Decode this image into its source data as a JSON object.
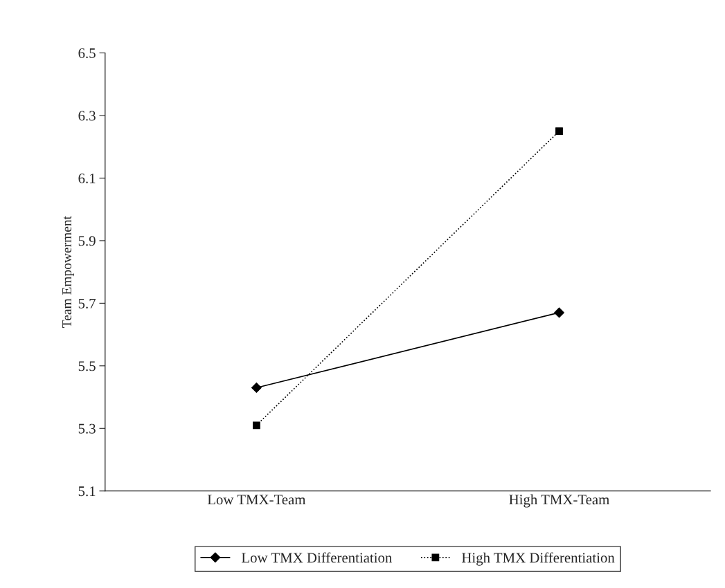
{
  "chart_data": {
    "type": "line",
    "ylabel": "Team Empowerment",
    "categories": [
      "Low TMX-Team",
      "High TMX-Team"
    ],
    "series": [
      {
        "name": "Low TMX Differentiation",
        "color": "#000000",
        "values": [
          5.43,
          5.67
        ],
        "marker": "diamond",
        "line_style": "solid"
      },
      {
        "name": "High TMX Differentiation",
        "color": "#000000",
        "values": [
          5.31,
          6.25
        ],
        "marker": "square",
        "line_style": "dotted"
      }
    ],
    "ylim": [
      5.1,
      6.5
    ],
    "yticks": [
      5.1,
      5.3,
      5.5,
      5.7,
      5.9,
      6.1,
      6.3,
      6.5
    ],
    "grid": false,
    "legend": "bottom"
  }
}
